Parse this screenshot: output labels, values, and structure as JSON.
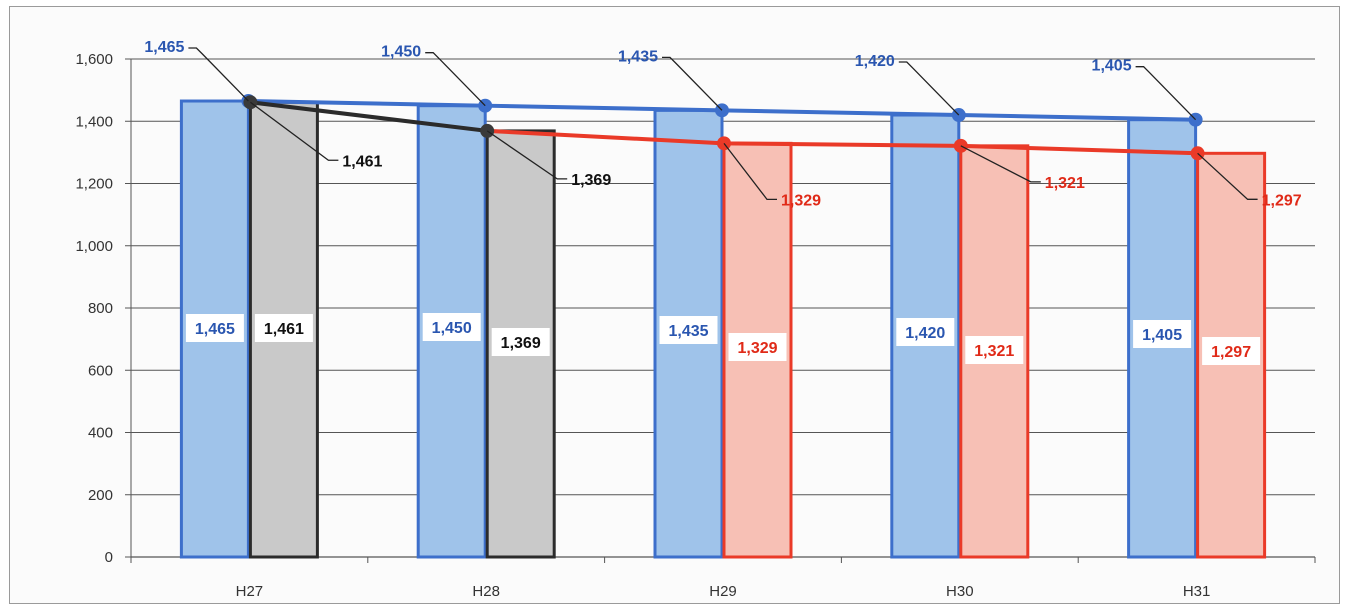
{
  "chart_data": {
    "type": "bar",
    "categories": [
      "H27",
      "H28",
      "H29",
      "H30",
      "H31"
    ],
    "ylim": [
      0,
      1600
    ],
    "yticks": [
      0,
      200,
      400,
      600,
      800,
      1000,
      1200,
      1400,
      1600
    ],
    "ytick_labels": [
      "0",
      "200",
      "400",
      "600",
      "800",
      "1,000",
      "1,200",
      "1,400",
      "1,600"
    ],
    "grid": true,
    "colors": {
      "blue_fill": "#9fc3ea",
      "blue_edge": "#3d6fcb",
      "gray_fill": "#c9c9c9",
      "gray_edge": "#2b2b2b",
      "red_fill": "#f7c0b5",
      "red_edge": "#ea3a28",
      "blue_text": "#2a56b0",
      "red_text": "#e02a18"
    },
    "series": [
      {
        "key": "blue",
        "values": [
          1465,
          1450,
          1435,
          1420,
          1405
        ],
        "labels": [
          "1,465",
          "1,450",
          "1,435",
          "1,420",
          "1,405"
        ]
      },
      {
        "key": "second",
        "values": [
          1461,
          1369,
          1329,
          1321,
          1297
        ],
        "labels": [
          "1,461",
          "1,369",
          "1,329",
          "1,321",
          "1,297"
        ],
        "fill_keys": [
          "gray",
          "gray",
          "red",
          "red",
          "red"
        ]
      }
    ]
  }
}
